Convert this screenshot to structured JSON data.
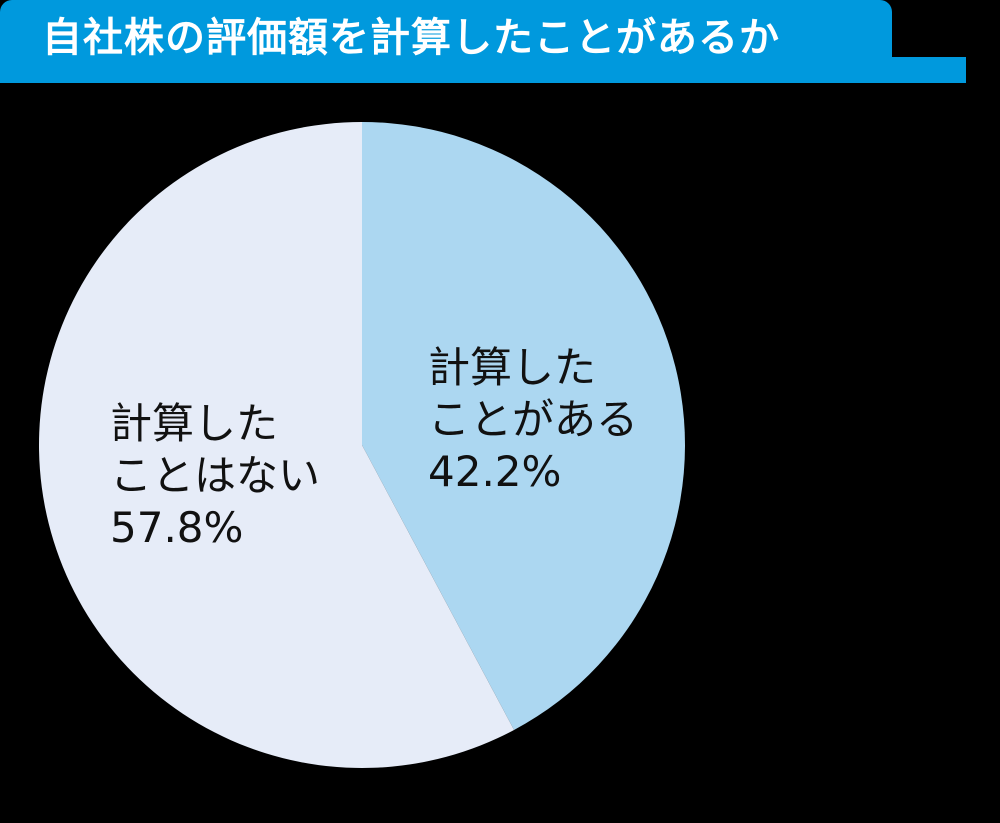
{
  "header": {
    "title": "自社株の評価額を計算したことがあるか",
    "color": "#0099dd"
  },
  "chart_data": {
    "type": "pie",
    "title": "自社株の評価額を計算したことがあるか",
    "categories": [
      "計算したことがある",
      "計算したことはない"
    ],
    "values": [
      42.2,
      57.8
    ],
    "unit": "%",
    "colors": [
      "#acd7f1",
      "#e6ecf8"
    ],
    "start_angle": "12 o'clock, clockwise",
    "labels": [
      {
        "line1": "計算した",
        "line2": "ことがある",
        "value": "42.2%"
      },
      {
        "line1": "計算した",
        "line2": "ことはない",
        "value": "57.8%"
      }
    ],
    "legend": "none (labels inside slices)"
  }
}
